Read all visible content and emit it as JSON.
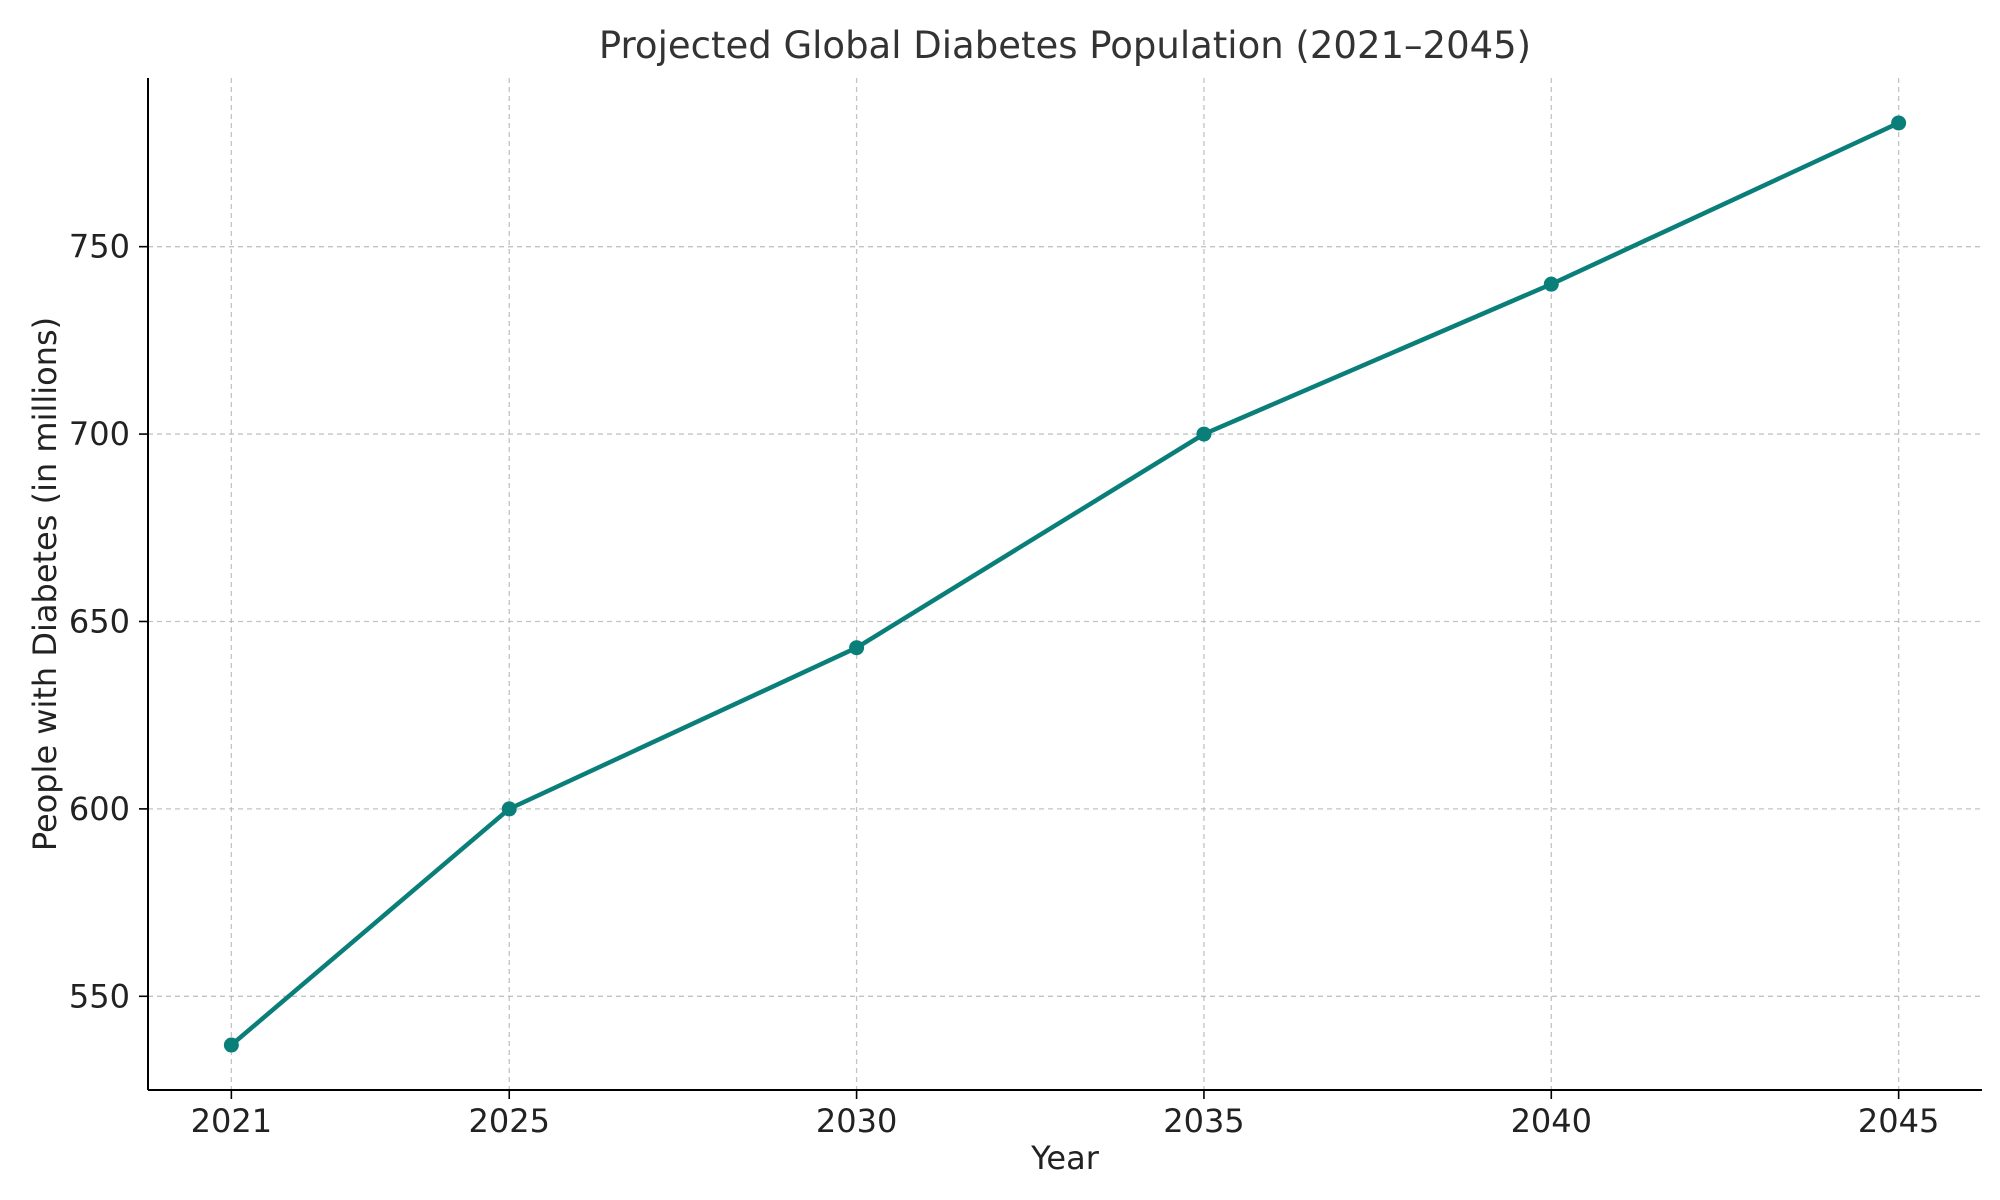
{
  "chart_data": {
    "type": "line",
    "title": "Projected Global Diabetes Population (2021–2045)",
    "xlabel": "Year",
    "ylabel": "People with Diabetes (in millions)",
    "x": [
      2021,
      2025,
      2030,
      2035,
      2040,
      2045
    ],
    "x_tick_labels": [
      "2021",
      "2025",
      "2030",
      "2035",
      "2040",
      "2045"
    ],
    "y_ticks": [
      550,
      600,
      650,
      700,
      750
    ],
    "y_tick_labels": [
      "550",
      "600",
      "650",
      "700",
      "750"
    ],
    "xlim": [
      2019.8,
      2046.2
    ],
    "ylim": [
      525,
      795
    ],
    "grid": true,
    "series": [
      {
        "values": [
          537,
          600,
          643,
          700,
          740,
          783
        ],
        "color": "#0a7f7a"
      }
    ]
  }
}
